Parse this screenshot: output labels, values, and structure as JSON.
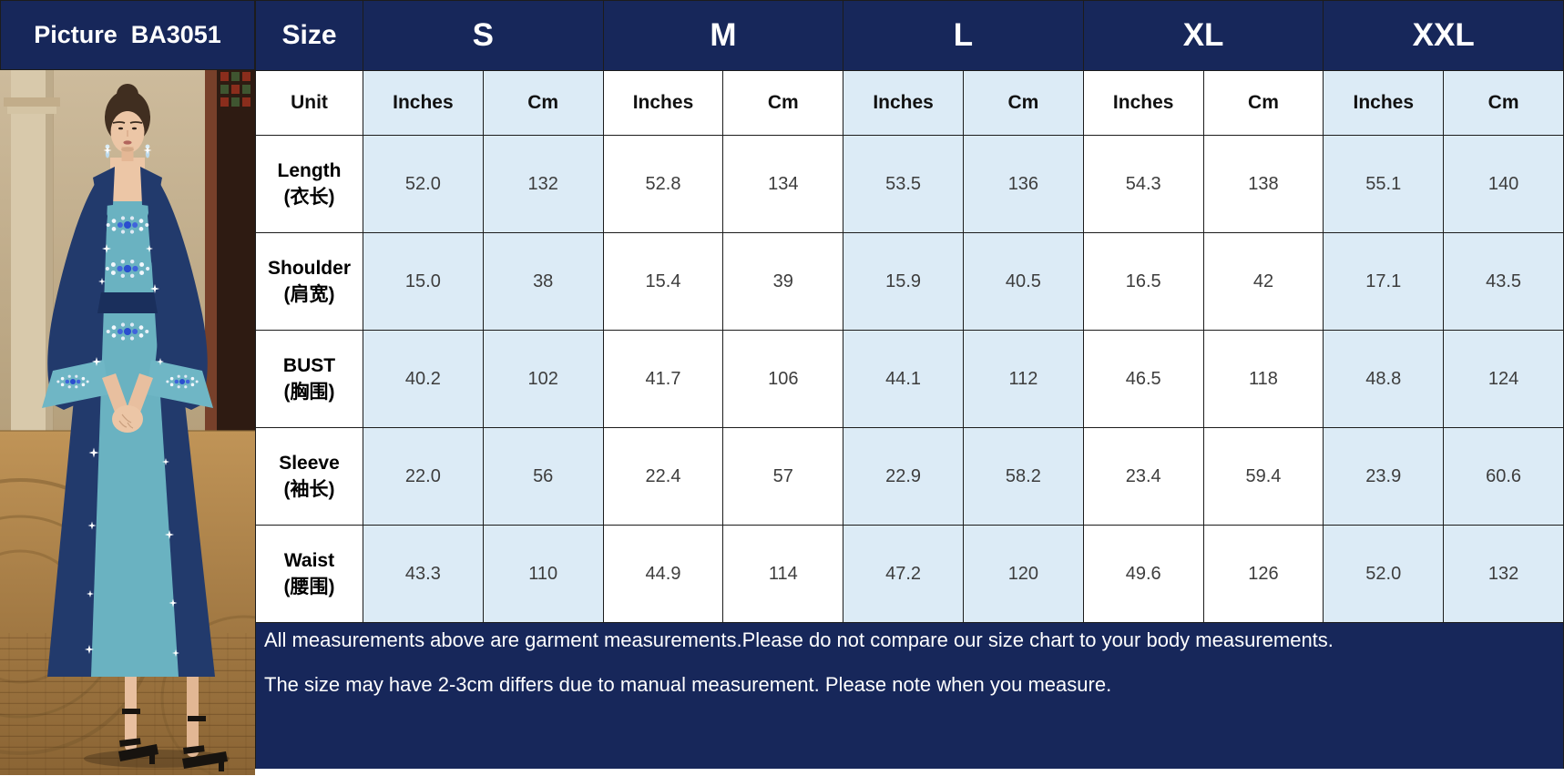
{
  "picture": {
    "header_label": "Picture  BA3051",
    "description": "Model wearing a navy and teal jewel-embellished abaya dress"
  },
  "table": {
    "size_label": "Size",
    "unit_label": "Unit",
    "sizes": [
      "S",
      "M",
      "L",
      "XL",
      "XXL"
    ],
    "unit_columns": [
      "Inches",
      "Cm"
    ],
    "rows": [
      {
        "label_en": "Length",
        "label_zh": "(衣长)",
        "values": [
          "52.0",
          "132",
          "52.8",
          "134",
          "53.5",
          "136",
          "54.3",
          "138",
          "55.1",
          "140"
        ]
      },
      {
        "label_en": "Shoulder",
        "label_zh": "(肩宽)",
        "values": [
          "15.0",
          "38",
          "15.4",
          "39",
          "15.9",
          "40.5",
          "16.5",
          "42",
          "17.1",
          "43.5"
        ]
      },
      {
        "label_en": "BUST",
        "label_zh": "(胸围)",
        "values": [
          "40.2",
          "102",
          "41.7",
          "106",
          "44.1",
          "112",
          "46.5",
          "118",
          "48.8",
          "124"
        ]
      },
      {
        "label_en": "Sleeve",
        "label_zh": "(袖长)",
        "values": [
          "22.0",
          "56",
          "22.4",
          "57",
          "22.9",
          "58.2",
          "23.4",
          "59.4",
          "23.9",
          "60.6"
        ]
      },
      {
        "label_en": "Waist",
        "label_zh": "(腰围)",
        "values": [
          "43.3",
          "110",
          "44.9",
          "114",
          "47.2",
          "120",
          "49.6",
          "126",
          "52.0",
          "132"
        ]
      }
    ]
  },
  "footer": {
    "line1": "All measurements above are garment measurements.Please do not compare our size chart to your body measurements.",
    "line2": "The size may have 2-3cm differs due to manual measurement. Please note when you measure."
  },
  "colors": {
    "header_navy": "#17275a",
    "light_blue": "#dcebf6",
    "grid_line": "#1c1c1c",
    "dress_navy": "#223a6c",
    "dress_teal": "#6ab2c1",
    "jewel_blue": "#2a4ecf"
  }
}
